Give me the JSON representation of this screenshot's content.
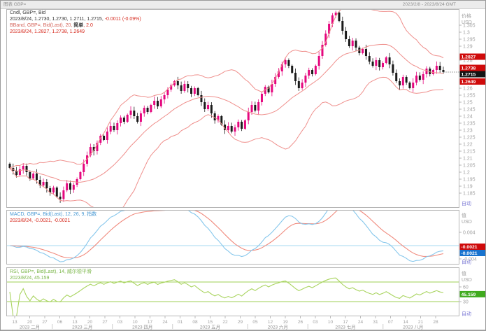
{
  "window": {
    "app_title": "图表 GBP=",
    "date_range": "2023/2/8 - 2023/8/24 GMT"
  },
  "main_panel": {
    "legend": {
      "line1": "Cndl, GBP=, Bid",
      "line2_values": "2023/8/24, 1.2730, 1.2730, 1.2711, 1.2715,",
      "line2_change": "-0.0011 (-0.09%)",
      "line3_a": "BBand, GBP=, Bid(Last), 20, ",
      "line3_b": "简单",
      "line3_c": ", 2.0",
      "line4": "2023/8/24, 1.2827, 1.2738, 1.2649"
    },
    "axis": {
      "title": "价格",
      "unit": "USD",
      "auto": "自动",
      "ticks": [
        "1.305",
        "1.3",
        "1.295",
        "1.29",
        "1.28",
        "1.26",
        "1.255",
        "1.25",
        "1.245",
        "1.24",
        "1.235",
        "1.23",
        "1.225",
        "1.22",
        "1.215",
        "1.21",
        "1.205",
        "1.2",
        "1.195",
        "1.19",
        "1.185"
      ],
      "labels": {
        "bband_upper": "1.2827",
        "bband_mid": "1.2738",
        "last_price": "1.2715",
        "bband_lower": "1.2649"
      }
    }
  },
  "macd_panel": {
    "legend1": "MACD, GBP=, Bid(Last), 12, 26, 9, 指数",
    "legend2": "2023/8/24, -0.0021, -0.0021",
    "axis": {
      "title": "值",
      "unit": "USD",
      "auto": "自动",
      "ticks": [
        "0.004",
        "-0.004"
      ],
      "labels": {
        "signal": "-0.0021",
        "macd": "-0.0021"
      }
    }
  },
  "rsi_panel": {
    "legend1": "RSI, GBP=, Bid(Last), 14, 威尔德平滑",
    "legend2": "2023/8/24, 45.159",
    "axis": {
      "title": "值",
      "unit": "USD",
      "auto": "自动",
      "ticks": [
        "60",
        "30"
      ],
      "labels": {
        "rsi": "45.159"
      }
    }
  },
  "x_axis": {
    "months": [
      {
        "label": "2023 二月",
        "days": [
          "13",
          "20",
          "27"
        ]
      },
      {
        "label": "2023 三月",
        "days": [
          "06",
          "13",
          "20",
          "27"
        ]
      },
      {
        "label": "2023 四月",
        "days": [
          "03",
          "10",
          "17",
          "24"
        ]
      },
      {
        "label": "2023 五月",
        "days": [
          "01",
          "08",
          "15",
          "22",
          "29"
        ]
      },
      {
        "label": "2023 六月",
        "days": [
          "05",
          "12",
          "19",
          "26"
        ]
      },
      {
        "label": "2023 七月",
        "days": [
          "03",
          "10",
          "17",
          "24",
          "31"
        ]
      },
      {
        "label": "2023 八月",
        "days": [
          "07",
          "14",
          "21",
          "28"
        ]
      }
    ]
  },
  "colors": {
    "up": "#e5077e",
    "down": "#1a1a1a",
    "band": "#ef8f8c",
    "macd": "#86c7ec",
    "signal": "#f08a7d",
    "zero": "#a5d8f2",
    "rsi": "#a9d45f",
    "rsi_band": "#9fcf54",
    "frame": "#b5b5b5",
    "axis_text": "#a0a0a0",
    "auto_text": "#7d7bd6",
    "label_red": "#cf0a0a",
    "label_black": "#141414",
    "label_blue": "#1873cf",
    "label_green": "#3faa1e"
  },
  "chart_data": [
    {
      "type": "candlestick",
      "name": "GBP= Bid 日线",
      "date_range": "2023/2/8 - 2023/8/24",
      "ylim": [
        1.1725,
        1.3175
      ],
      "open_first": 1.206,
      "typical_wick": 0.0022,
      "closes": [
        1.203,
        1.201,
        1.198,
        1.202,
        1.2045,
        1.2,
        1.1955,
        1.199,
        1.1945,
        1.1905,
        1.193,
        1.1885,
        1.1855,
        1.189,
        1.1825,
        1.1808,
        1.187,
        1.192,
        1.1875,
        1.191,
        1.195,
        1.2,
        1.206,
        1.212,
        1.218,
        1.215,
        1.221,
        1.226,
        1.223,
        1.229,
        1.233,
        1.23,
        1.235,
        1.239,
        1.236,
        1.241,
        1.244,
        1.24,
        1.236,
        1.242,
        1.246,
        1.243,
        1.248,
        1.251,
        1.247,
        1.252,
        1.255,
        1.259,
        1.262,
        1.265,
        1.262,
        1.258,
        1.263,
        1.26,
        1.256,
        1.26,
        1.255,
        1.25,
        1.245,
        1.248,
        1.242,
        1.237,
        1.24,
        1.234,
        1.23,
        1.233,
        1.229,
        1.232,
        1.236,
        1.231,
        1.237,
        1.243,
        1.248,
        1.244,
        1.25,
        1.256,
        1.261,
        1.257,
        1.263,
        1.268,
        1.272,
        1.277,
        1.28,
        1.276,
        1.271,
        1.265,
        1.26,
        1.264,
        1.269,
        1.273,
        1.27,
        1.276,
        1.283,
        1.291,
        1.299,
        1.306,
        1.312,
        1.314,
        1.308,
        1.301,
        1.295,
        1.29,
        1.294,
        1.289,
        1.285,
        1.288,
        1.283,
        1.279,
        1.276,
        1.28,
        1.275,
        1.278,
        1.282,
        1.277,
        1.271,
        1.265,
        1.262,
        1.268,
        1.264,
        1.26,
        1.264,
        1.269,
        1.266,
        1.27,
        1.274,
        1.27,
        1.273,
        1.276,
        1.273,
        1.2715
      ],
      "ohlc_last": {
        "date": "2023/8/24",
        "open": 1.273,
        "high": 1.273,
        "low": 1.2711,
        "close": 1.2715,
        "change": -0.0011,
        "change_pct": "-0.09%"
      },
      "overlays": [
        {
          "name": "BBand",
          "period": 20,
          "method": "简单",
          "stdev": 2.0,
          "last": {
            "upper": 1.2827,
            "middle": 1.2738,
            "lower": 1.2649
          }
        }
      ]
    },
    {
      "type": "line",
      "name": "MACD",
      "params": [
        12,
        26,
        9
      ],
      "method": "指数",
      "last": {
        "macd": -0.0021,
        "signal": -0.0021
      },
      "yticks": [
        0.004,
        -0.004
      ],
      "zero_line": 0
    },
    {
      "type": "line",
      "name": "RSI",
      "period": 14,
      "method": "威尔德平滑",
      "last": 45.159,
      "bands": [
        70,
        30
      ],
      "yticks": [
        60,
        30
      ]
    }
  ]
}
